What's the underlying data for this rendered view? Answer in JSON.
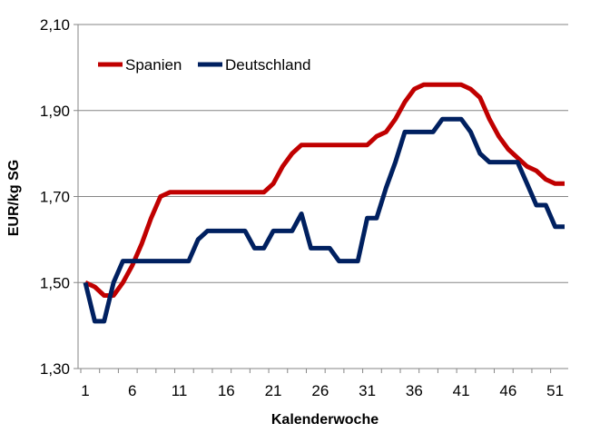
{
  "chart_data": {
    "type": "line",
    "xlabel": "Kalenderwoche",
    "ylabel": "EUR/kg SG",
    "x": [
      1,
      2,
      3,
      4,
      5,
      6,
      7,
      8,
      9,
      10,
      11,
      12,
      13,
      14,
      15,
      16,
      17,
      18,
      19,
      20,
      21,
      22,
      23,
      24,
      25,
      26,
      27,
      28,
      29,
      30,
      31,
      32,
      33,
      34,
      35,
      36,
      37,
      38,
      39,
      40,
      41,
      42,
      43,
      44,
      45,
      46,
      47,
      48,
      49,
      50,
      51,
      52
    ],
    "x_ticks": [
      "1",
      "6",
      "11",
      "16",
      "21",
      "26",
      "31",
      "36",
      "41",
      "46",
      "51"
    ],
    "x_tick_values": [
      1,
      6,
      11,
      16,
      21,
      26,
      31,
      36,
      41,
      46,
      51
    ],
    "xlim": [
      1,
      52
    ],
    "ylim": [
      1.3,
      2.1
    ],
    "y_ticks": [
      "1,30",
      "1,50",
      "1,70",
      "1,90",
      "2,10"
    ],
    "y_tick_values": [
      1.3,
      1.5,
      1.7,
      1.9,
      2.1
    ],
    "grid": "horizontal",
    "legend_position": "top-left",
    "series": [
      {
        "name": "Spanien",
        "color": "#C00000",
        "values": [
          1.5,
          1.49,
          1.47,
          1.47,
          1.5,
          1.54,
          1.59,
          1.65,
          1.7,
          1.71,
          1.71,
          1.71,
          1.71,
          1.71,
          1.71,
          1.71,
          1.71,
          1.71,
          1.71,
          1.71,
          1.73,
          1.77,
          1.8,
          1.82,
          1.82,
          1.82,
          1.82,
          1.82,
          1.82,
          1.82,
          1.82,
          1.84,
          1.85,
          1.88,
          1.92,
          1.95,
          1.96,
          1.96,
          1.96,
          1.96,
          1.96,
          1.95,
          1.93,
          1.88,
          1.84,
          1.81,
          1.79,
          1.77,
          1.76,
          1.74,
          1.73,
          1.73
        ]
      },
      {
        "name": "Deutschland",
        "color": "#002060",
        "values": [
          1.5,
          1.41,
          1.41,
          1.5,
          1.55,
          1.55,
          1.55,
          1.55,
          1.55,
          1.55,
          1.55,
          1.55,
          1.6,
          1.62,
          1.62,
          1.62,
          1.62,
          1.62,
          1.58,
          1.58,
          1.62,
          1.62,
          1.62,
          1.66,
          1.58,
          1.58,
          1.58,
          1.55,
          1.55,
          1.55,
          1.65,
          1.65,
          1.72,
          1.78,
          1.85,
          1.85,
          1.85,
          1.85,
          1.88,
          1.88,
          1.88,
          1.85,
          1.8,
          1.78,
          1.78,
          1.78,
          1.78,
          1.73,
          1.68,
          1.68,
          1.63,
          1.63
        ]
      }
    ]
  }
}
